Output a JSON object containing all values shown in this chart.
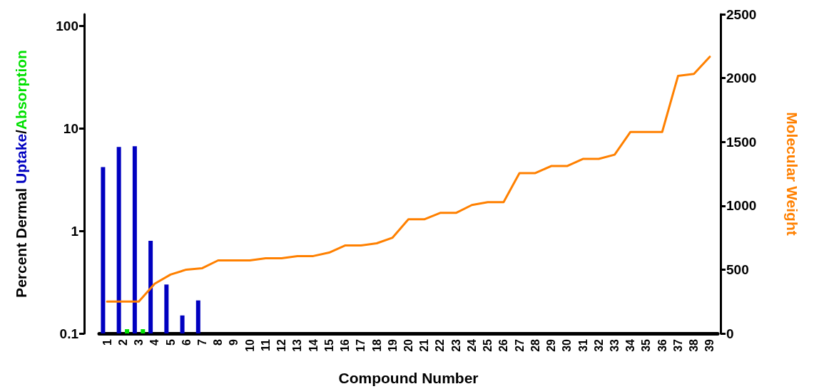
{
  "chart_data": {
    "type": "bar",
    "xlabel": "Compound Number",
    "ylabel": "Percent Dermal Uptake/Absorption",
    "y2label": "Molecular Weight",
    "categories": [
      "1",
      "2",
      "3",
      "4",
      "5",
      "6",
      "7",
      "8",
      "9",
      "10",
      "11",
      "12",
      "13",
      "14",
      "15",
      "16",
      "17",
      "18",
      "19",
      "20",
      "21",
      "22",
      "23",
      "24",
      "25",
      "26",
      "27",
      "28",
      "29",
      "30",
      "31",
      "32",
      "33",
      "34",
      "35",
      "36",
      "37",
      "38",
      "39"
    ],
    "series": [
      {
        "color": "#0000c0",
        "values": [
          4.2,
          6.6,
          6.7,
          0.8,
          0.3,
          0.15,
          0.21,
          null,
          null,
          null,
          null,
          null,
          null,
          null,
          null,
          null,
          null,
          null,
          null,
          null,
          null,
          null,
          null,
          null,
          null,
          null,
          null,
          null,
          null,
          null,
          null,
          null,
          null,
          null,
          null,
          null,
          null,
          null,
          null
        ]
      },
      {
        "color": "#00e000",
        "values": [
          null,
          0.11,
          0.11,
          null,
          null,
          null,
          null,
          null,
          null,
          null,
          null,
          null,
          null,
          null,
          null,
          null,
          null,
          null,
          null,
          null,
          null,
          null,
          null,
          null,
          null,
          null,
          null,
          null,
          null,
          null,
          null,
          null,
          null,
          null,
          null,
          null,
          null,
          null,
          null
        ]
      },
      {
        "type": "line",
        "axis": "y2",
        "color": "#ff8000",
        "values": [
          250,
          250,
          250,
          389,
          461,
          500,
          511,
          572,
          572,
          572,
          589,
          589,
          606,
          606,
          633,
          689,
          689,
          706,
          750,
          894,
          894,
          944,
          944,
          1006,
          1028,
          1028,
          1256,
          1256,
          1311,
          1311,
          1367,
          1367,
          1400,
          1578,
          1578,
          1578,
          2017,
          2033,
          2167
        ]
      }
    ],
    "log": "y",
    "ylim": [
      0.1,
      130
    ],
    "yticks": [
      0.1,
      1,
      10,
      100
    ],
    "y2lim": [
      0,
      2500
    ],
    "y2ticks": [
      0,
      500,
      1000,
      1500,
      2000,
      2500
    ],
    "grid": false,
    "marker": "none",
    "line_style": "solid"
  }
}
